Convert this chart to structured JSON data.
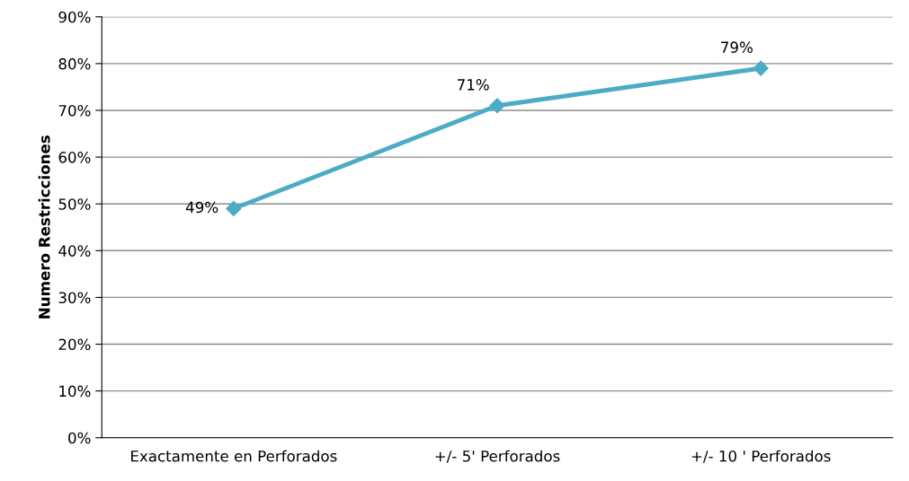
{
  "chart_data": {
    "type": "line",
    "ylabel": "Numero Restricciones",
    "categories": [
      "Exactamente en Perforados",
      "+/- 5' Perforados",
      "+/- 10 ' Perforados"
    ],
    "series": [
      {
        "color": "#4bacc6",
        "values": [
          49,
          71,
          79
        ],
        "value_labels": [
          "49%",
          "71%",
          "79%"
        ]
      }
    ],
    "ylim": [
      0,
      90
    ],
    "yticks": [
      {
        "value": 0,
        "label": "0%"
      },
      {
        "value": 10,
        "label": "10%"
      },
      {
        "value": 20,
        "label": "20%"
      },
      {
        "value": 30,
        "label": "30%"
      },
      {
        "value": 40,
        "label": "40%"
      },
      {
        "value": 50,
        "label": "50%"
      },
      {
        "value": 60,
        "label": "60%"
      },
      {
        "value": 70,
        "label": "70%"
      },
      {
        "value": 80,
        "label": "80%"
      },
      {
        "value": 90,
        "label": "90%"
      }
    ],
    "grid": "y",
    "marker": "diamond",
    "line_style": "solid"
  }
}
